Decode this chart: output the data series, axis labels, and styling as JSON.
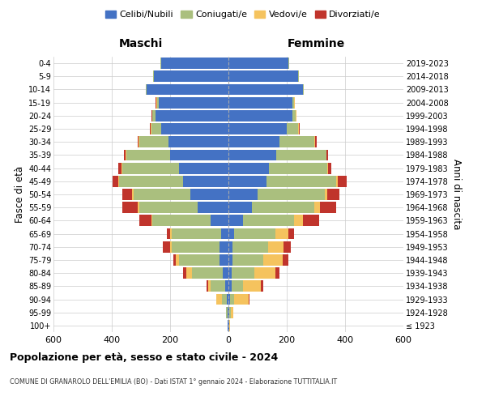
{
  "age_groups": [
    "100+",
    "95-99",
    "90-94",
    "85-89",
    "80-84",
    "75-79",
    "70-74",
    "65-69",
    "60-64",
    "55-59",
    "50-54",
    "45-49",
    "40-44",
    "35-39",
    "30-34",
    "25-29",
    "20-24",
    "15-19",
    "10-14",
    "5-9",
    "0-4"
  ],
  "birth_years": [
    "≤ 1923",
    "1924-1928",
    "1929-1933",
    "1934-1938",
    "1939-1943",
    "1944-1948",
    "1949-1953",
    "1954-1958",
    "1959-1963",
    "1964-1968",
    "1969-1973",
    "1974-1978",
    "1979-1983",
    "1984-1988",
    "1989-1993",
    "1994-1998",
    "1999-2003",
    "2004-2008",
    "2009-2013",
    "2014-2018",
    "2019-2023"
  ],
  "maschi": {
    "celibi": [
      2,
      2,
      5,
      10,
      20,
      30,
      30,
      25,
      60,
      105,
      130,
      155,
      170,
      200,
      205,
      230,
      250,
      240,
      280,
      255,
      230
    ],
    "coniugati": [
      2,
      5,
      18,
      50,
      105,
      140,
      165,
      170,
      200,
      200,
      195,
      220,
      195,
      150,
      100,
      35,
      10,
      5,
      2,
      2,
      2
    ],
    "vedovi": [
      0,
      2,
      18,
      10,
      20,
      10,
      5,
      5,
      5,
      5,
      5,
      2,
      2,
      2,
      2,
      2,
      2,
      2,
      0,
      0,
      0
    ],
    "divorziati": [
      0,
      0,
      0,
      5,
      10,
      10,
      25,
      10,
      40,
      55,
      35,
      20,
      10,
      5,
      5,
      2,
      2,
      2,
      0,
      0,
      0
    ]
  },
  "femmine": {
    "nubili": [
      2,
      2,
      5,
      10,
      10,
      15,
      15,
      20,
      50,
      80,
      100,
      130,
      140,
      165,
      175,
      200,
      220,
      220,
      255,
      240,
      205
    ],
    "coniugate": [
      2,
      5,
      15,
      40,
      80,
      105,
      120,
      140,
      175,
      215,
      230,
      240,
      200,
      170,
      120,
      40,
      10,
      5,
      2,
      2,
      2
    ],
    "vedove": [
      2,
      10,
      50,
      60,
      70,
      65,
      55,
      45,
      30,
      20,
      10,
      5,
      2,
      2,
      2,
      2,
      2,
      2,
      0,
      0,
      0
    ],
    "divorziate": [
      0,
      0,
      2,
      10,
      15,
      20,
      25,
      20,
      55,
      55,
      40,
      30,
      10,
      5,
      5,
      2,
      2,
      2,
      0,
      0,
      0
    ]
  },
  "colors": {
    "celibi_nubili": "#4472C4",
    "coniugati": "#AABF7E",
    "vedovi": "#F5C35E",
    "divorziati": "#C0342C"
  },
  "title": "Popolazione per età, sesso e stato civile - 2024",
  "subtitle": "COMUNE DI GRANAROLO DELL'EMILIA (BO) - Dati ISTAT 1° gennaio 2024 - Elaborazione TUTTITALIA.IT",
  "xlabel_left": "Maschi",
  "xlabel_right": "Femmine",
  "ylabel_left": "Fasce di età",
  "ylabel_right": "Anni di nascita",
  "xlim": 600,
  "legend_labels": [
    "Celibi/Nubili",
    "Coniugati/e",
    "Vedovi/e",
    "Divorziati/e"
  ],
  "background_color": "#ffffff",
  "grid_color": "#cccccc"
}
